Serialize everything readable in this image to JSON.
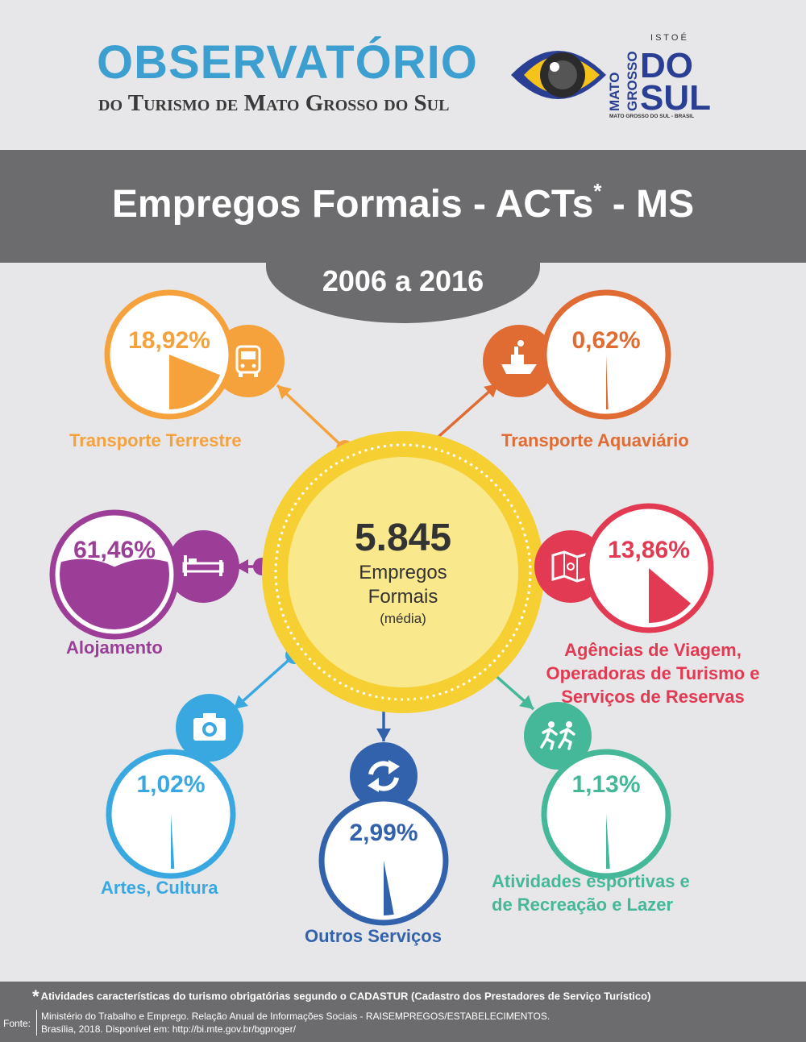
{
  "header": {
    "title": "OBSERVATÓRIO",
    "subtitle": "do Turismo de Mato Grosso do Sul",
    "logo": {
      "top": "I S T O  É",
      "mato": "MATO",
      "grosso": "GROSSO",
      "do": "DO",
      "sul": "SUL",
      "bottom": "MATO GROSSO DO SUL - BRASIL"
    }
  },
  "main_title": "Empregos Formais - ACTs",
  "main_title_mark": "*",
  "main_title_suffix": " - MS",
  "period": "2006 a 2016",
  "center": {
    "value": "5.845",
    "label_line1": "Empregos",
    "label_line2": "Formais",
    "label_line3": "(média)"
  },
  "sectors": [
    {
      "name": "Transporte Terrestre",
      "pct_label": "18,92%",
      "value": 18.92,
      "color": "#f5a23c",
      "icon": "bus-icon"
    },
    {
      "name": "Transporte Aquaviário",
      "pct_label": "0,62%",
      "value": 0.62,
      "color": "#e06b33",
      "icon": "ship-icon"
    },
    {
      "name": "Alojamento",
      "pct_label": "61,46%",
      "value": 61.46,
      "color": "#9c3d97",
      "icon": "bed-icon"
    },
    {
      "name_lines": [
        "Agências de Viagem,",
        "Operadoras de Turismo e",
        "Serviços de Reservas"
      ],
      "pct_label": "13,86%",
      "value": 13.86,
      "color": "#e23a52",
      "icon": "map-icon"
    },
    {
      "name": "Artes, Cultura",
      "pct_label": "1,02%",
      "value": 1.02,
      "color": "#3aa8e0",
      "icon": "camera-icon"
    },
    {
      "name": "Outros Serviços",
      "pct_label": "2,99%",
      "value": 2.99,
      "color": "#3362ad",
      "icon": "refresh-icon"
    },
    {
      "name_lines": [
        "Atividades esportivas e",
        "de Recreação e Lazer"
      ],
      "pct_label": "1,13%",
      "value": 1.13,
      "color": "#44b898",
      "icon": "running-icon"
    }
  ],
  "footer": {
    "star": "*",
    "note": "Atividades características do turismo obrigatórias segundo o CADASTUR (Cadastro dos Prestadores de Serviço Turístico)",
    "source_label": "Fonte:",
    "source_line1": "Ministério do Trabalho e Emprego. Relação Anual de Informações Sociais - RAISEMPREGOS/ESTABELECIMENTOS.",
    "source_line2": "Brasília, 2018. Disponível em: http://bi.mte.gov.br/bgproger/"
  },
  "colors": {
    "center_ring": "#f6d033",
    "center_fill": "#fae88c",
    "band": "#6c6c6e",
    "title_blue": "#3d9fd0"
  }
}
